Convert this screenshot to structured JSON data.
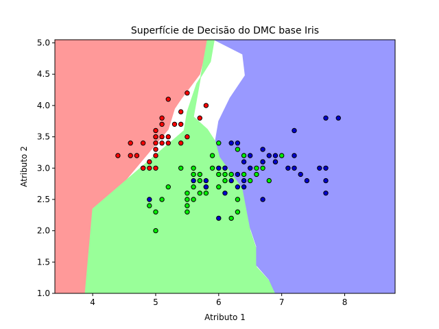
{
  "chart_data": {
    "type": "scatter",
    "title": "Superfície de Decisão do DMC base Iris",
    "xlabel": "Atributo 1",
    "ylabel": "Atributo 2",
    "xlim": [
      3.4,
      8.8
    ],
    "ylim": [
      1.0,
      5.05
    ],
    "xticks": [
      4,
      5,
      6,
      7,
      8
    ],
    "xtick_labels": [
      "4",
      "5",
      "6",
      "7",
      "8"
    ],
    "yticks": [
      1.0,
      1.5,
      2.0,
      2.5,
      3.0,
      3.5,
      4.0,
      4.5,
      5.0
    ],
    "ytick_labels": [
      "1.0",
      "1.5",
      "2.0",
      "2.5",
      "3.0",
      "3.5",
      "4.0",
      "4.5",
      "5.0"
    ],
    "grid": false,
    "decision_regions": [
      {
        "class": 0,
        "color": "#ff9999",
        "polygon": [
          [
            3.4,
            5.05
          ],
          [
            5.82,
            5.05
          ],
          [
            5.78,
            4.82
          ],
          [
            5.7,
            4.5
          ],
          [
            5.4,
            4.1
          ],
          [
            5.3,
            3.95
          ],
          [
            5.2,
            3.62
          ],
          [
            4.1,
            2.3
          ],
          [
            3.88,
            1.0
          ],
          [
            3.4,
            1.0
          ]
        ]
      },
      {
        "class": 1,
        "color": "#99ff99",
        "polygon": [
          [
            5.82,
            5.05
          ],
          [
            5.93,
            5.05
          ],
          [
            5.87,
            4.7
          ],
          [
            5.65,
            4.35
          ],
          [
            5.5,
            3.9
          ],
          [
            5.45,
            3.6
          ],
          [
            4.0,
            2.35
          ],
          [
            3.88,
            1.0
          ],
          [
            6.9,
            1.0
          ],
          [
            6.8,
            1.2
          ],
          [
            6.6,
            1.42
          ],
          [
            6.6,
            1.7
          ],
          [
            6.5,
            2.0
          ],
          [
            6.4,
            2.65
          ],
          [
            6.05,
            3.15
          ],
          [
            5.95,
            3.42
          ],
          [
            5.82,
            3.62
          ],
          [
            5.6,
            3.82
          ]
        ]
      },
      {
        "class": 2,
        "color": "#9999ff",
        "polygon": [
          [
            5.93,
            5.05
          ],
          [
            8.8,
            5.05
          ],
          [
            8.8,
            1.0
          ],
          [
            6.9,
            1.0
          ],
          [
            6.8,
            1.22
          ],
          [
            6.6,
            1.45
          ],
          [
            6.6,
            1.75
          ],
          [
            6.5,
            2.05
          ],
          [
            6.38,
            2.68
          ],
          [
            6.02,
            3.18
          ],
          [
            5.95,
            3.45
          ],
          [
            6.0,
            3.75
          ],
          [
            6.18,
            4.12
          ],
          [
            6.42,
            4.48
          ],
          [
            6.38,
            4.82
          ],
          [
            5.93,
            5.05
          ]
        ]
      }
    ],
    "series": [
      {
        "class": 0,
        "color": "#ff0000",
        "points": [
          [
            4.4,
            3.2
          ],
          [
            4.6,
            3.4
          ],
          [
            4.6,
            3.2
          ],
          [
            4.7,
            3.2
          ],
          [
            4.8,
            3.4
          ],
          [
            4.8,
            3.0
          ],
          [
            4.9,
            3.1
          ],
          [
            4.9,
            3.0
          ],
          [
            5.0,
            3.6
          ],
          [
            5.0,
            3.5
          ],
          [
            5.0,
            3.4
          ],
          [
            5.0,
            3.3
          ],
          [
            5.0,
            3.2
          ],
          [
            5.0,
            3.0
          ],
          [
            5.1,
            3.8
          ],
          [
            5.1,
            3.7
          ],
          [
            5.1,
            3.5
          ],
          [
            5.1,
            3.4
          ],
          [
            5.2,
            4.1
          ],
          [
            5.2,
            3.5
          ],
          [
            5.2,
            3.4
          ],
          [
            5.3,
            3.7
          ],
          [
            5.4,
            3.9
          ],
          [
            5.4,
            3.7
          ],
          [
            5.4,
            3.4
          ],
          [
            5.5,
            4.2
          ],
          [
            5.5,
            3.5
          ],
          [
            5.7,
            3.8
          ],
          [
            5.8,
            4.0
          ],
          [
            4.8,
            3.0
          ],
          [
            5.0,
            3.5
          ]
        ]
      },
      {
        "class": 1,
        "color": "#00ee00",
        "points": [
          [
            4.9,
            2.4
          ],
          [
            5.0,
            2.3
          ],
          [
            5.0,
            2.0
          ],
          [
            5.1,
            2.5
          ],
          [
            5.2,
            2.7
          ],
          [
            5.4,
            3.0
          ],
          [
            5.5,
            2.6
          ],
          [
            5.5,
            2.5
          ],
          [
            5.5,
            2.4
          ],
          [
            5.5,
            2.3
          ],
          [
            5.6,
            3.0
          ],
          [
            5.6,
            2.9
          ],
          [
            5.6,
            2.7
          ],
          [
            5.6,
            2.5
          ],
          [
            5.7,
            2.9
          ],
          [
            5.7,
            2.8
          ],
          [
            5.7,
            2.6
          ],
          [
            5.8,
            2.7
          ],
          [
            5.8,
            2.6
          ],
          [
            5.9,
            3.2
          ],
          [
            5.9,
            3.0
          ],
          [
            6.0,
            3.4
          ],
          [
            6.0,
            2.9
          ],
          [
            6.0,
            2.7
          ],
          [
            6.1,
            3.0
          ],
          [
            6.1,
            2.9
          ],
          [
            6.1,
            2.8
          ],
          [
            6.2,
            2.9
          ],
          [
            6.2,
            2.2
          ],
          [
            6.3,
            3.3
          ],
          [
            6.3,
            2.5
          ],
          [
            6.3,
            2.3
          ],
          [
            6.4,
            3.2
          ],
          [
            6.4,
            2.9
          ],
          [
            6.5,
            2.8
          ],
          [
            6.6,
            3.0
          ],
          [
            6.6,
            2.9
          ],
          [
            6.7,
            3.1
          ],
          [
            6.7,
            3.0
          ],
          [
            6.8,
            2.8
          ],
          [
            6.9,
            3.1
          ],
          [
            7.0,
            3.2
          ]
        ]
      },
      {
        "class": 2,
        "color": "#0000cc",
        "points": [
          [
            4.9,
            2.5
          ],
          [
            5.6,
            2.8
          ],
          [
            5.8,
            2.8
          ],
          [
            5.8,
            2.7
          ],
          [
            6.0,
            3.0
          ],
          [
            6.0,
            2.2
          ],
          [
            6.1,
            3.0
          ],
          [
            6.1,
            2.6
          ],
          [
            6.2,
            3.4
          ],
          [
            6.2,
            2.8
          ],
          [
            6.3,
            3.4
          ],
          [
            6.3,
            2.9
          ],
          [
            6.3,
            2.7
          ],
          [
            6.4,
            3.1
          ],
          [
            6.4,
            2.8
          ],
          [
            6.4,
            2.7
          ],
          [
            6.5,
            3.2
          ],
          [
            6.5,
            3.0
          ],
          [
            6.7,
            3.3
          ],
          [
            6.7,
            3.1
          ],
          [
            6.7,
            2.5
          ],
          [
            6.8,
            3.2
          ],
          [
            6.9,
            3.2
          ],
          [
            6.9,
            3.1
          ],
          [
            7.1,
            3.0
          ],
          [
            7.2,
            3.6
          ],
          [
            7.2,
            3.2
          ],
          [
            7.2,
            3.0
          ],
          [
            7.3,
            2.9
          ],
          [
            7.4,
            2.8
          ],
          [
            7.6,
            3.0
          ],
          [
            7.7,
            3.8
          ],
          [
            7.7,
            3.0
          ],
          [
            7.7,
            2.8
          ],
          [
            7.7,
            2.6
          ],
          [
            7.9,
            3.8
          ]
        ]
      }
    ]
  }
}
